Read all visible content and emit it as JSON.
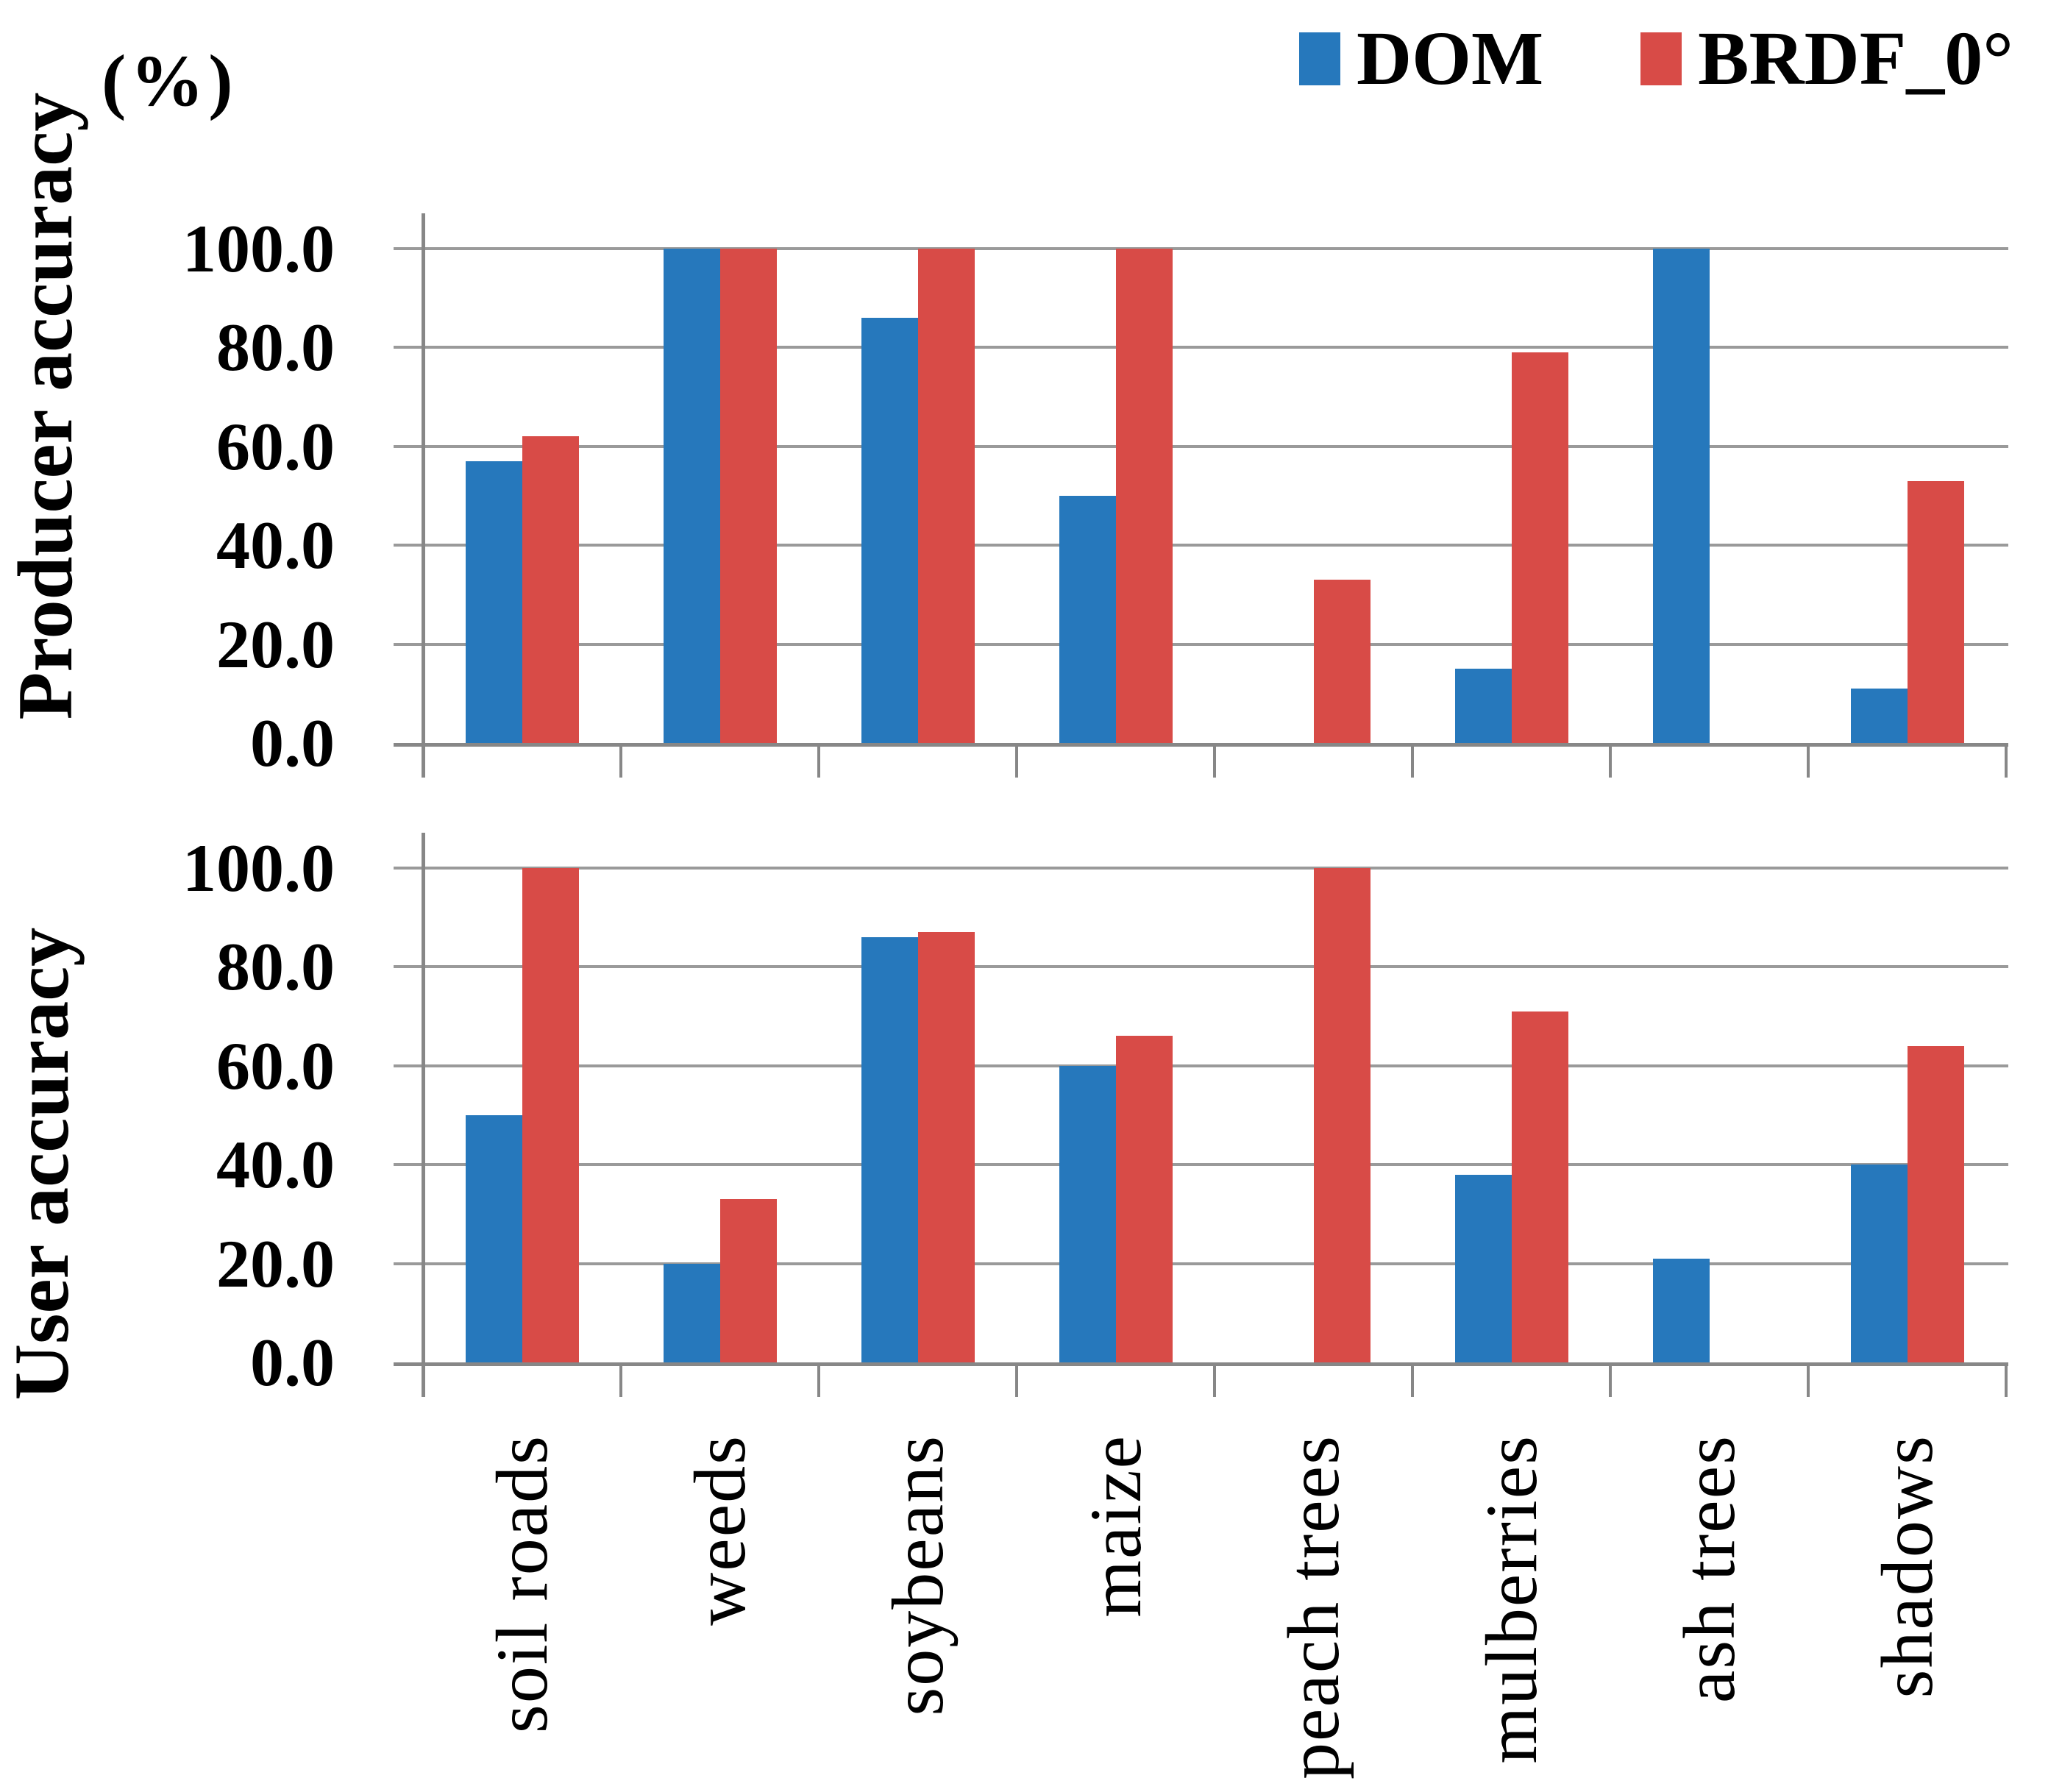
{
  "figure": {
    "percent_label": "(%)",
    "legend": [
      {
        "label": "DOM",
        "color": "#2678BC"
      },
      {
        "label": "BRDF_0°",
        "color": "#D84B47"
      }
    ]
  },
  "chart_data": [
    {
      "type": "bar",
      "panel": "producer",
      "title": "",
      "xlabel": "",
      "ylabel": "Producer accuracy",
      "ylim": [
        0,
        100
      ],
      "grid": true,
      "legend_position": "top-right",
      "yticks": [
        "100.0",
        "80.0",
        "60.0",
        "40.0",
        "20.0",
        "0.0"
      ],
      "categories": [
        "soil roads",
        "weeds",
        "soybeans",
        "maize",
        "peach trees",
        "mulberries",
        "ash trees",
        "shadows"
      ],
      "series": [
        {
          "name": "DOM",
          "color": "#2678BC",
          "values": [
            57,
            100,
            86,
            50,
            0,
            15,
            100,
            11
          ]
        },
        {
          "name": "BRDF_0°",
          "color": "#D84B47",
          "values": [
            62,
            100,
            100,
            100,
            33,
            79,
            0,
            53
          ]
        }
      ]
    },
    {
      "type": "bar",
      "panel": "user",
      "title": "",
      "xlabel": "",
      "ylabel": "User accuracy",
      "ylim": [
        0,
        100
      ],
      "grid": true,
      "legend_position": "none",
      "yticks": [
        "100.0",
        "80.0",
        "60.0",
        "40.0",
        "20.0",
        "0.0"
      ],
      "categories": [
        "soil roads",
        "weeds",
        "soybeans",
        "maize",
        "peach trees",
        "mulberries",
        "ash trees",
        "shadows"
      ],
      "series": [
        {
          "name": "DOM",
          "color": "#2678BC",
          "values": [
            50,
            20,
            86,
            60,
            0,
            38,
            21,
            40
          ]
        },
        {
          "name": "BRDF_0°",
          "color": "#D84B47",
          "values": [
            100,
            33,
            87,
            66,
            100,
            71,
            0,
            64
          ]
        }
      ]
    }
  ]
}
